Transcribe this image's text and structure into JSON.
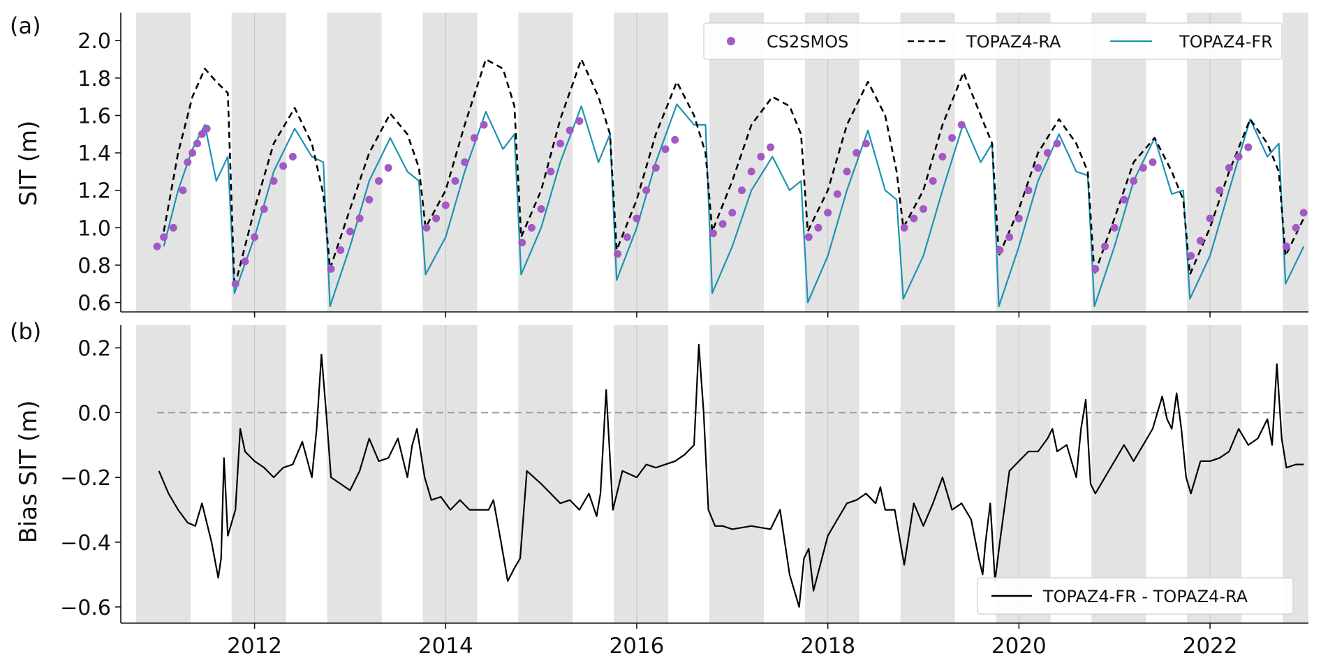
{
  "chart_data": [
    {
      "type": "line",
      "panel": "(a)",
      "xlabel": "",
      "ylabel": "SIT (m)",
      "xlim": [
        2010.6,
        2023.03
      ],
      "ylim": [
        0.55,
        2.15
      ],
      "yticks": [
        "0.6",
        "0.8",
        "1.0",
        "1.2",
        "1.4",
        "1.6",
        "1.8",
        "2.0"
      ],
      "grid": false,
      "shading": "grey bands Oct-Apr each winter",
      "legend_placement": "top-right",
      "series": [
        {
          "name": "TOPAZ4-RA",
          "style": "dashed",
          "color": "#000000",
          "x": [
            2011.05,
            2011.2,
            2011.35,
            2011.48,
            2011.6,
            2011.72,
            2011.79,
            2012.0,
            2012.2,
            2012.42,
            2012.6,
            2012.72,
            2012.79,
            2013.0,
            2013.2,
            2013.42,
            2013.6,
            2013.72,
            2013.79,
            2014.0,
            2014.2,
            2014.42,
            2014.6,
            2014.72,
            2014.79,
            2015.0,
            2015.2,
            2015.42,
            2015.6,
            2015.72,
            2015.79,
            2016.0,
            2016.2,
            2016.42,
            2016.6,
            2016.72,
            2016.79,
            2017.0,
            2017.2,
            2017.42,
            2017.6,
            2017.72,
            2017.79,
            2018.0,
            2018.2,
            2018.42,
            2018.6,
            2018.72,
            2018.79,
            2019.0,
            2019.2,
            2019.42,
            2019.6,
            2019.72,
            2019.79,
            2020.0,
            2020.2,
            2020.42,
            2020.6,
            2020.72,
            2020.79,
            2021.0,
            2021.2,
            2021.42,
            2021.6,
            2021.72,
            2021.79,
            2022.0,
            2022.2,
            2022.42,
            2022.6,
            2022.72,
            2022.79,
            2022.98
          ],
          "y": [
            0.98,
            1.4,
            1.7,
            1.85,
            1.78,
            1.72,
            0.68,
            1.1,
            1.45,
            1.64,
            1.45,
            1.18,
            0.78,
            1.1,
            1.4,
            1.61,
            1.5,
            1.32,
            1.0,
            1.2,
            1.55,
            1.9,
            1.85,
            1.65,
            0.95,
            1.2,
            1.58,
            1.9,
            1.7,
            1.5,
            0.88,
            1.15,
            1.5,
            1.78,
            1.6,
            1.4,
            0.98,
            1.25,
            1.55,
            1.7,
            1.65,
            1.5,
            0.98,
            1.2,
            1.55,
            1.78,
            1.6,
            1.3,
            1.0,
            1.2,
            1.55,
            1.83,
            1.6,
            1.45,
            0.85,
            1.1,
            1.4,
            1.58,
            1.45,
            1.3,
            0.75,
            1.05,
            1.35,
            1.48,
            1.3,
            1.15,
            0.75,
            1.0,
            1.3,
            1.58,
            1.45,
            1.3,
            0.85,
            1.05
          ]
        },
        {
          "name": "TOPAZ4-FR",
          "style": "solid",
          "color": "#1b93b0",
          "x": [
            2011.05,
            2011.2,
            2011.35,
            2011.48,
            2011.6,
            2011.72,
            2011.79,
            2012.0,
            2012.2,
            2012.42,
            2012.6,
            2012.72,
            2012.79,
            2013.0,
            2013.2,
            2013.42,
            2013.6,
            2013.72,
            2013.79,
            2014.0,
            2014.2,
            2014.42,
            2014.6,
            2014.72,
            2014.79,
            2015.0,
            2015.2,
            2015.42,
            2015.6,
            2015.72,
            2015.79,
            2016.0,
            2016.2,
            2016.42,
            2016.6,
            2016.72,
            2016.79,
            2017.0,
            2017.2,
            2017.42,
            2017.6,
            2017.72,
            2017.79,
            2018.0,
            2018.2,
            2018.42,
            2018.6,
            2018.72,
            2018.79,
            2019.0,
            2019.2,
            2019.42,
            2019.6,
            2019.72,
            2019.79,
            2020.0,
            2020.2,
            2020.42,
            2020.6,
            2020.72,
            2020.79,
            2021.0,
            2021.2,
            2021.42,
            2021.6,
            2021.72,
            2021.79,
            2022.0,
            2022.2,
            2022.42,
            2022.6,
            2022.72,
            2022.79,
            2022.98
          ],
          "y": [
            0.9,
            1.2,
            1.42,
            1.55,
            1.25,
            1.38,
            0.65,
            0.95,
            1.3,
            1.53,
            1.38,
            1.35,
            0.58,
            0.9,
            1.25,
            1.48,
            1.3,
            1.25,
            0.75,
            0.95,
            1.3,
            1.62,
            1.42,
            1.5,
            0.75,
            1.0,
            1.35,
            1.65,
            1.35,
            1.5,
            0.72,
            1.0,
            1.35,
            1.66,
            1.55,
            1.55,
            0.65,
            0.9,
            1.2,
            1.38,
            1.2,
            1.25,
            0.6,
            0.85,
            1.2,
            1.52,
            1.2,
            1.15,
            0.62,
            0.85,
            1.2,
            1.56,
            1.35,
            1.45,
            0.58,
            0.9,
            1.25,
            1.5,
            1.3,
            1.28,
            0.58,
            0.9,
            1.25,
            1.48,
            1.18,
            1.2,
            0.62,
            0.85,
            1.2,
            1.58,
            1.38,
            1.45,
            0.7,
            0.9
          ]
        },
        {
          "name": "CS2SMOS",
          "style": "markers",
          "color": "#a259c4",
          "x": [
            2010.98,
            2011.05,
            2011.15,
            2011.25,
            2011.3,
            2011.35,
            2011.4,
            2011.45,
            2011.5,
            2011.8,
            2011.9,
            2012.0,
            2012.1,
            2012.2,
            2012.3,
            2012.4,
            2012.8,
            2012.9,
            2013.0,
            2013.1,
            2013.2,
            2013.3,
            2013.4,
            2013.8,
            2013.9,
            2014.0,
            2014.1,
            2014.2,
            2014.3,
            2014.4,
            2014.8,
            2014.9,
            2015.0,
            2015.1,
            2015.2,
            2015.3,
            2015.4,
            2015.8,
            2015.9,
            2016.0,
            2016.1,
            2016.2,
            2016.3,
            2016.4,
            2016.8,
            2016.9,
            2017.0,
            2017.1,
            2017.2,
            2017.3,
            2017.4,
            2017.8,
            2017.9,
            2018.0,
            2018.1,
            2018.2,
            2018.3,
            2018.4,
            2018.8,
            2018.9,
            2019.0,
            2019.1,
            2019.2,
            2019.3,
            2019.4,
            2019.8,
            2019.9,
            2020.0,
            2020.1,
            2020.2,
            2020.3,
            2020.4,
            2020.8,
            2020.9,
            2021.0,
            2021.1,
            2021.2,
            2021.3,
            2021.4,
            2021.8,
            2021.9,
            2022.0,
            2022.1,
            2022.2,
            2022.3,
            2022.4,
            2022.8,
            2022.9,
            2022.98
          ],
          "y": [
            0.9,
            0.95,
            1.0,
            1.2,
            1.35,
            1.4,
            1.45,
            1.5,
            1.53,
            0.7,
            0.82,
            0.95,
            1.1,
            1.25,
            1.33,
            1.38,
            0.78,
            0.88,
            0.98,
            1.05,
            1.15,
            1.25,
            1.32,
            1.0,
            1.05,
            1.12,
            1.25,
            1.35,
            1.48,
            1.55,
            0.92,
            1.0,
            1.1,
            1.3,
            1.45,
            1.52,
            1.57,
            0.86,
            0.95,
            1.05,
            1.2,
            1.32,
            1.42,
            1.47,
            0.97,
            1.02,
            1.08,
            1.2,
            1.3,
            1.38,
            1.43,
            0.95,
            1.0,
            1.08,
            1.18,
            1.3,
            1.4,
            1.45,
            1.0,
            1.05,
            1.1,
            1.25,
            1.38,
            1.48,
            1.55,
            0.88,
            0.95,
            1.05,
            1.2,
            1.32,
            1.4,
            1.45,
            0.78,
            0.9,
            1.0,
            1.15,
            1.25,
            1.32,
            1.35,
            0.85,
            0.93,
            1.05,
            1.2,
            1.32,
            1.38,
            1.43,
            0.9,
            1.0,
            1.08
          ]
        }
      ]
    },
    {
      "type": "line",
      "panel": "(b)",
      "xlabel": "",
      "ylabel": "Bias SIT (m)",
      "xlim": [
        2010.6,
        2023.03
      ],
      "ylim": [
        -0.65,
        0.27
      ],
      "yticks": [
        "0.2",
        "0.0",
        "−0.2",
        "−0.4",
        "−0.6"
      ],
      "xticks": [
        "2012",
        "2014",
        "2016",
        "2018",
        "2020",
        "2022"
      ],
      "grid": false,
      "shading": "grey bands Oct-Apr each winter",
      "zero_line": "dashed grey at 0.0",
      "legend_placement": "bottom-right",
      "series": [
        {
          "name": "TOPAZ4-FR - TOPAZ4-RA",
          "color": "#000000",
          "x": [
            2011.0,
            2011.1,
            2011.2,
            2011.3,
            2011.38,
            2011.45,
            2011.55,
            2011.62,
            2011.65,
            2011.68,
            2011.72,
            2011.8,
            2011.85,
            2011.9,
            2012.0,
            2012.1,
            2012.2,
            2012.3,
            2012.4,
            2012.5,
            2012.6,
            2012.65,
            2012.7,
            2012.75,
            2012.8,
            2012.9,
            2013.0,
            2013.1,
            2013.2,
            2013.3,
            2013.4,
            2013.5,
            2013.6,
            2013.65,
            2013.7,
            2013.78,
            2013.85,
            2013.95,
            2014.05,
            2014.15,
            2014.25,
            2014.35,
            2014.45,
            2014.5,
            2014.58,
            2014.65,
            2014.72,
            2014.78,
            2014.85,
            2015.0,
            2015.1,
            2015.2,
            2015.3,
            2015.4,
            2015.5,
            2015.58,
            2015.62,
            2015.68,
            2015.75,
            2015.85,
            2016.0,
            2016.1,
            2016.2,
            2016.3,
            2016.4,
            2016.5,
            2016.6,
            2016.65,
            2016.7,
            2016.75,
            2016.82,
            2016.9,
            2017.0,
            2017.2,
            2017.4,
            2017.5,
            2017.6,
            2017.7,
            2017.75,
            2017.8,
            2017.85,
            2018.0,
            2018.1,
            2018.2,
            2018.3,
            2018.4,
            2018.5,
            2018.55,
            2018.6,
            2018.7,
            2018.8,
            2018.9,
            2019.0,
            2019.1,
            2019.2,
            2019.3,
            2019.4,
            2019.5,
            2019.58,
            2019.62,
            2019.65,
            2019.7,
            2019.75,
            2019.8,
            2019.9,
            2020.0,
            2020.1,
            2020.2,
            2020.3,
            2020.35,
            2020.4,
            2020.5,
            2020.6,
            2020.65,
            2020.7,
            2020.75,
            2020.8,
            2020.9,
            2021.0,
            2021.1,
            2021.2,
            2021.3,
            2021.4,
            2021.5,
            2021.55,
            2021.6,
            2021.65,
            2021.7,
            2021.75,
            2021.8,
            2021.9,
            2022.0,
            2022.1,
            2022.2,
            2022.3,
            2022.4,
            2022.5,
            2022.6,
            2022.65,
            2022.7,
            2022.75,
            2022.8,
            2022.9,
            2022.98
          ],
          "y": [
            -0.18,
            -0.25,
            -0.3,
            -0.34,
            -0.35,
            -0.28,
            -0.4,
            -0.51,
            -0.45,
            -0.14,
            -0.38,
            -0.3,
            -0.05,
            -0.12,
            -0.15,
            -0.17,
            -0.2,
            -0.17,
            -0.16,
            -0.09,
            -0.2,
            -0.05,
            0.18,
            0.0,
            -0.2,
            -0.22,
            -0.24,
            -0.18,
            -0.08,
            -0.15,
            -0.14,
            -0.08,
            -0.2,
            -0.1,
            -0.05,
            -0.2,
            -0.27,
            -0.26,
            -0.3,
            -0.27,
            -0.3,
            -0.3,
            -0.3,
            -0.27,
            -0.4,
            -0.52,
            -0.48,
            -0.45,
            -0.18,
            -0.22,
            -0.25,
            -0.28,
            -0.27,
            -0.3,
            -0.25,
            -0.32,
            -0.25,
            0.07,
            -0.3,
            -0.18,
            -0.2,
            -0.16,
            -0.17,
            -0.16,
            -0.15,
            -0.13,
            -0.1,
            0.21,
            0.0,
            -0.3,
            -0.35,
            -0.35,
            -0.36,
            -0.35,
            -0.36,
            -0.3,
            -0.5,
            -0.6,
            -0.45,
            -0.42,
            -0.55,
            -0.38,
            -0.33,
            -0.28,
            -0.27,
            -0.25,
            -0.28,
            -0.23,
            -0.3,
            -0.3,
            -0.47,
            -0.28,
            -0.35,
            -0.28,
            -0.2,
            -0.3,
            -0.28,
            -0.33,
            -0.45,
            -0.5,
            -0.4,
            -0.28,
            -0.52,
            -0.4,
            -0.18,
            -0.15,
            -0.12,
            -0.12,
            -0.08,
            -0.05,
            -0.12,
            -0.1,
            -0.2,
            -0.05,
            0.04,
            -0.22,
            -0.25,
            -0.2,
            -0.15,
            -0.1,
            -0.15,
            -0.1,
            -0.05,
            0.05,
            -0.02,
            -0.05,
            0.06,
            -0.05,
            -0.2,
            -0.25,
            -0.15,
            -0.15,
            -0.14,
            -0.12,
            -0.05,
            -0.1,
            -0.08,
            -0.02,
            -0.1,
            0.15,
            -0.08,
            -0.17,
            -0.16,
            -0.16
          ]
        }
      ]
    }
  ],
  "figure": {
    "winter_bands": [
      [
        2010.76,
        2011.33
      ],
      [
        2011.76,
        2012.33
      ],
      [
        2012.76,
        2013.33
      ],
      [
        2013.76,
        2014.33
      ],
      [
        2014.76,
        2015.33
      ],
      [
        2015.76,
        2016.33
      ],
      [
        2016.76,
        2017.33
      ],
      [
        2017.76,
        2018.33
      ],
      [
        2018.76,
        2019.33
      ],
      [
        2019.76,
        2020.33
      ],
      [
        2020.76,
        2021.33
      ],
      [
        2021.76,
        2022.33
      ],
      [
        2022.76,
        2023.03
      ]
    ],
    "year_lines": [
      2012,
      2014,
      2016,
      2018,
      2020,
      2022
    ],
    "band_color": "#e3e3e3"
  }
}
